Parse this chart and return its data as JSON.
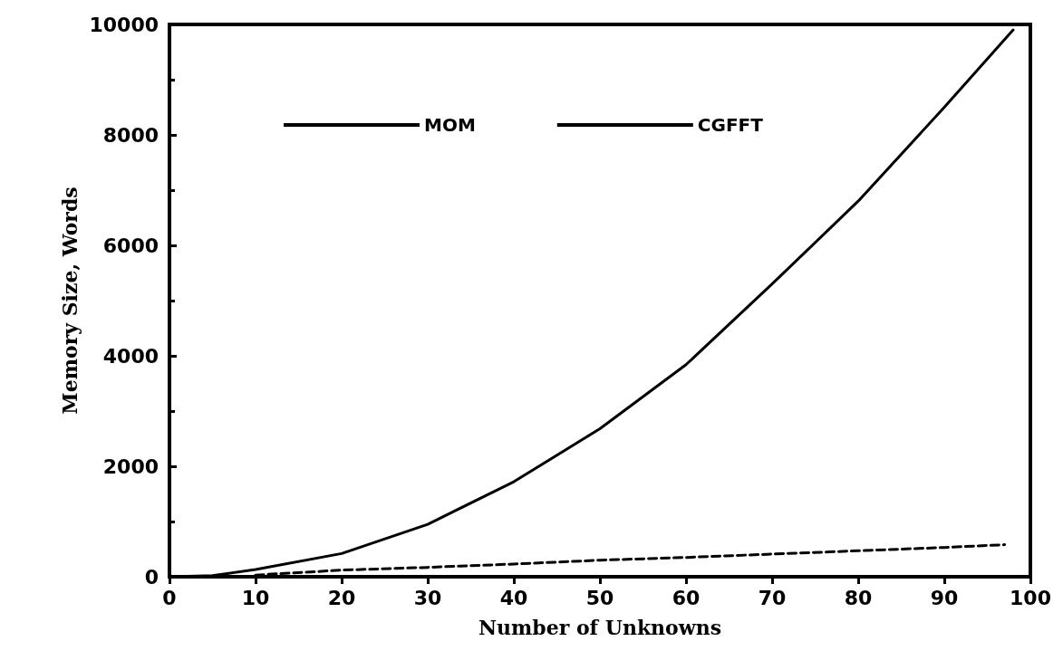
{
  "chart_data": {
    "type": "line",
    "xlabel": "Number of Unknowns",
    "ylabel": "Memory Size, Words",
    "xlim": [
      0,
      100
    ],
    "xticks": [
      0,
      10,
      20,
      30,
      40,
      50,
      60,
      70,
      80,
      90,
      100
    ],
    "ylim": [
      0,
      10000
    ],
    "yticks": [
      0,
      2000,
      4000,
      6000,
      8000,
      10000
    ],
    "legend": "top",
    "grid": false,
    "marker": "none",
    "series": [
      {
        "name": "MOM",
        "color": "#000000",
        "line_style": "solid",
        "x": [
          0,
          5,
          10,
          20,
          30,
          40,
          50,
          60,
          70,
          80,
          90,
          98
        ],
        "values": [
          0,
          20,
          130,
          420,
          950,
          1720,
          2680,
          3840,
          5300,
          6800,
          8500,
          9900
        ]
      },
      {
        "name": "CGFFT",
        "color": "#000000",
        "line_style": "dashed",
        "x": [
          10,
          20,
          30,
          40,
          50,
          60,
          70,
          80,
          90,
          97
        ],
        "values": [
          30,
          120,
          170,
          230,
          300,
          350,
          410,
          470,
          530,
          580
        ]
      }
    ]
  }
}
